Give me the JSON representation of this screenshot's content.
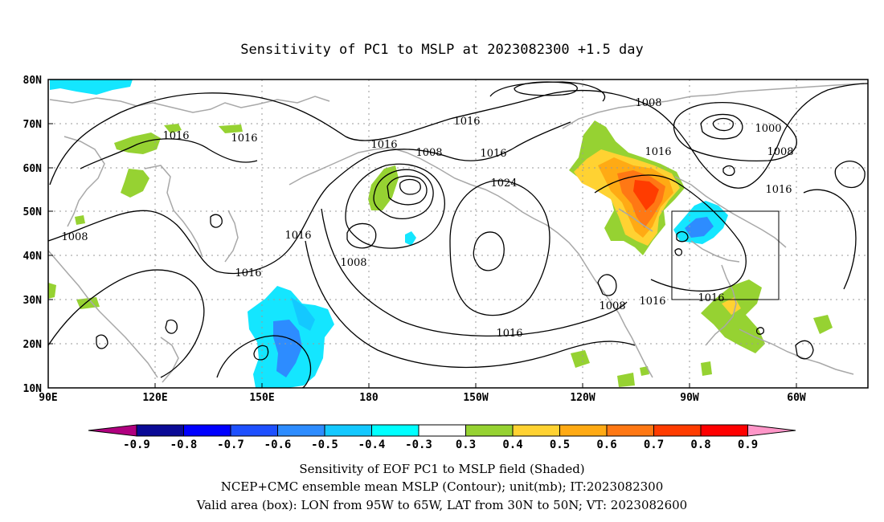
{
  "title": "Sensitivity of PC1 to MSLP at 2023082300 +1.5 day",
  "map": {
    "lon_labels": [
      "90E",
      "120E",
      "150E",
      "180",
      "150W",
      "120W",
      "90W",
      "60W"
    ],
    "lat_labels": [
      "80N",
      "70N",
      "60N",
      "50N",
      "40N",
      "30N",
      "20N",
      "10N"
    ],
    "contour_labels": [
      {
        "text": "1016"
      },
      {
        "text": "1016"
      },
      {
        "text": "1016"
      },
      {
        "text": "1016"
      },
      {
        "text": "1008"
      },
      {
        "text": "1016"
      },
      {
        "text": "1008"
      },
      {
        "text": "1016"
      },
      {
        "text": "1024"
      },
      {
        "text": "1008"
      },
      {
        "text": "1016"
      },
      {
        "text": "1016"
      },
      {
        "text": "1008"
      },
      {
        "text": "1000"
      },
      {
        "text": "1008"
      },
      {
        "text": "1016"
      },
      {
        "text": "1008"
      },
      {
        "text": "1016"
      },
      {
        "text": "1016"
      },
      {
        "text": "1016"
      }
    ],
    "valid_box": {
      "lon_from": "95W",
      "lon_to": "65W",
      "lat_from": "30N",
      "lat_to": "50N"
    }
  },
  "colorbar": {
    "colors": [
      "#b0007f",
      "#0a0a96",
      "#0000ff",
      "#1e50ff",
      "#2d8cff",
      "#14c8ff",
      "#00ffff",
      "#ffffff",
      "#96d232",
      "#ffd232",
      "#ffaa14",
      "#ff7814",
      "#ff3c00",
      "#ff0000",
      "#ff96c8"
    ],
    "labels": [
      "-0.9",
      "-0.8",
      "-0.7",
      "-0.6",
      "-0.5",
      "-0.4",
      "-0.3",
      "0.3",
      "0.4",
      "0.5",
      "0.6",
      "0.7",
      "0.8",
      "0.9"
    ]
  },
  "captions": [
    "Sensitivity of EOF PC1 to MSLP field (Shaded)",
    "NCEP+CMC ensemble mean MSLP (Contour); unit(mb); IT:2023082300",
    "Valid area (box): LON from 95W to 65W, LAT from 30N to 50N; VT: 2023082600"
  ]
}
